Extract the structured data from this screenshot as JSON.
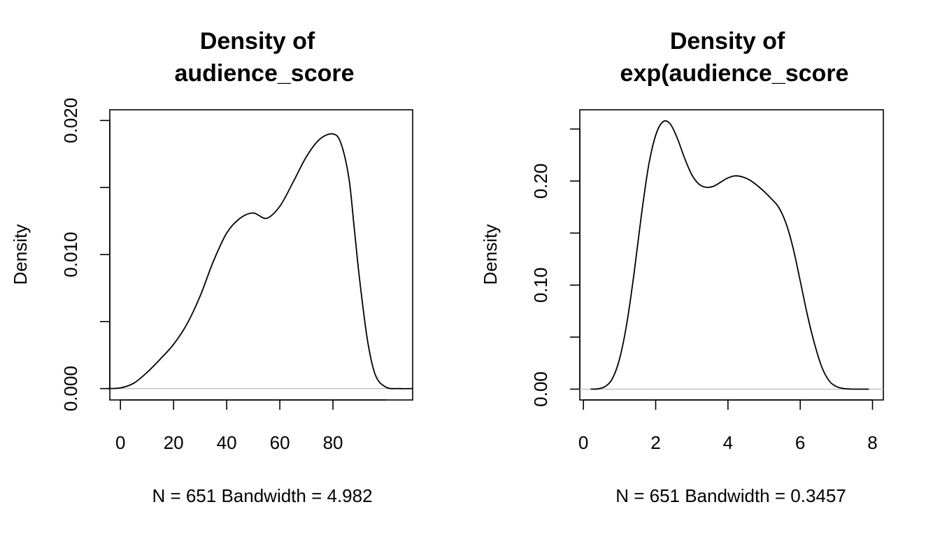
{
  "chart_data": [
    {
      "type": "line",
      "title_lines": [
        "Density of",
        "audience_score"
      ],
      "xlabel": "N = 651   Bandwidth = 4.982",
      "ylabel": "Density",
      "xlim": [
        -4.0,
        110.0
      ],
      "ylim": [
        -0.00085,
        0.0208
      ],
      "x_ticks": [
        0,
        20,
        40,
        60,
        80
      ],
      "x_tick_labels": [
        "0",
        "20",
        "40",
        "60",
        "80"
      ],
      "y_ticks": [
        0.0,
        0.005,
        0.01,
        0.015,
        0.02
      ],
      "y_tick_labels": [
        "0.000",
        "",
        "0.010",
        "",
        "0.020"
      ],
      "x_axis_range": [
        0,
        100
      ],
      "zero_line": true,
      "series": [
        {
          "x": [
            -5,
            0,
            5,
            10,
            15,
            20,
            25,
            30,
            35,
            40,
            45,
            50,
            55,
            60,
            65,
            70,
            75,
            80,
            83,
            86,
            88,
            90,
            93,
            96,
            100,
            105,
            110
          ],
          "y": [
            0.0,
            5e-05,
            0.0004,
            0.0012,
            0.0022,
            0.0033,
            0.0048,
            0.0069,
            0.0095,
            0.0116,
            0.0127,
            0.0131,
            0.0127,
            0.0136,
            0.0154,
            0.0173,
            0.0186,
            0.019,
            0.0183,
            0.0157,
            0.012,
            0.0082,
            0.0036,
            0.001,
            0.0001,
            0.0,
            0.0
          ]
        }
      ]
    },
    {
      "type": "line",
      "title_lines": [
        "Density of",
        "exp(audience_score"
      ],
      "xlabel": "N = 651   Bandwidth = 0.3457",
      "ylabel": "Density",
      "xlim": [
        -0.1,
        8.3
      ],
      "ylim": [
        -0.0104,
        0.2685
      ],
      "x_ticks": [
        0,
        2,
        4,
        6,
        8
      ],
      "x_tick_labels": [
        "0",
        "2",
        "4",
        "6",
        "8"
      ],
      "y_ticks": [
        0.0,
        0.05,
        0.1,
        0.15,
        0.2,
        0.25
      ],
      "y_tick_labels": [
        "0.00",
        "",
        "0.10",
        "",
        "0.20",
        ""
      ],
      "x_axis_range": [
        0,
        8
      ],
      "zero_line": true,
      "series": [
        {
          "x": [
            0.2,
            0.4,
            0.6,
            0.8,
            1.0,
            1.2,
            1.4,
            1.6,
            1.8,
            2.0,
            2.2,
            2.4,
            2.6,
            2.8,
            3.0,
            3.2,
            3.4,
            3.6,
            3.8,
            4.0,
            4.2,
            4.4,
            4.6,
            4.8,
            5.0,
            5.2,
            5.4,
            5.6,
            5.8,
            6.0,
            6.2,
            6.4,
            6.6,
            6.8,
            7.0,
            7.2,
            7.4,
            7.6,
            7.9
          ],
          "y": [
            0.0,
            0.0003,
            0.0025,
            0.01,
            0.029,
            0.063,
            0.111,
            0.166,
            0.214,
            0.244,
            0.257,
            0.255,
            0.241,
            0.222,
            0.206,
            0.197,
            0.194,
            0.195,
            0.199,
            0.203,
            0.205,
            0.204,
            0.201,
            0.196,
            0.19,
            0.183,
            0.175,
            0.16,
            0.136,
            0.104,
            0.071,
            0.043,
            0.021,
            0.008,
            0.0025,
            0.0006,
            0.0001,
            0.0,
            0.0
          ]
        }
      ]
    }
  ]
}
